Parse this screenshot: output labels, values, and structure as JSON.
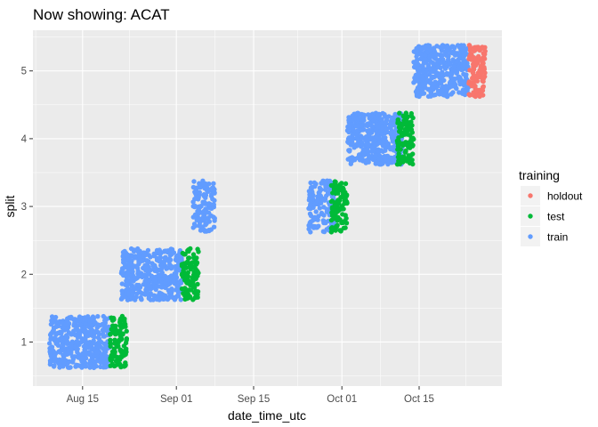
{
  "chart_data": {
    "type": "scatter",
    "title": "Now showing: ACAT",
    "xlabel": "date_time_utc",
    "ylabel": "split",
    "x_ticks": [
      "Aug 15",
      "Sep 01",
      "Sep 15",
      "Oct 01",
      "Oct 15"
    ],
    "x_tick_dates": [
      "2020-08-15",
      "2020-09-01",
      "2020-09-15",
      "2020-10-01",
      "2020-10-15"
    ],
    "xlim": [
      "2020-08-06",
      "2020-10-30"
    ],
    "y_ticks": [
      1,
      2,
      3,
      4,
      5
    ],
    "ylim": [
      0.35,
      5.6
    ],
    "grid": true,
    "jitter_height": 0.38,
    "legend": {
      "title": "training",
      "position": "right",
      "entries": [
        "holdout",
        "test",
        "train"
      ]
    },
    "colors": {
      "holdout": "#F8766D",
      "test": "#00BA38",
      "train": "#619CFF",
      "panel": "#EBEBEB",
      "grid": "#FFFFFF"
    },
    "series": [
      {
        "name": "train",
        "split": 1,
        "x_start": "2020-08-09",
        "x_end": "2020-08-20",
        "points": 420
      },
      {
        "name": "test",
        "split": 1,
        "x_start": "2020-08-20",
        "x_end": "2020-08-23",
        "points": 110
      },
      {
        "name": "train",
        "split": 2,
        "x_start": "2020-08-22",
        "x_end": "2020-09-02",
        "points": 420
      },
      {
        "name": "test",
        "split": 2,
        "x_start": "2020-09-02",
        "x_end": "2020-09-05",
        "points": 110
      },
      {
        "name": "train",
        "split": 3,
        "x_start": "2020-09-04",
        "x_end": "2020-09-08",
        "points": 120
      },
      {
        "name": "train",
        "split": 3,
        "x_start": "2020-09-25",
        "x_end": "2020-09-30",
        "points": 150
      },
      {
        "name": "test",
        "split": 3,
        "x_start": "2020-09-29",
        "x_end": "2020-10-02",
        "points": 90
      },
      {
        "name": "train",
        "split": 4,
        "x_start": "2020-10-02",
        "x_end": "2020-10-12",
        "points": 420
      },
      {
        "name": "test",
        "split": 4,
        "x_start": "2020-10-11",
        "x_end": "2020-10-14",
        "points": 110
      },
      {
        "name": "train",
        "split": 5,
        "x_start": "2020-10-14",
        "x_end": "2020-10-24",
        "points": 420
      },
      {
        "name": "holdout",
        "split": 5,
        "x_start": "2020-10-24",
        "x_end": "2020-10-27",
        "points": 110
      }
    ]
  }
}
